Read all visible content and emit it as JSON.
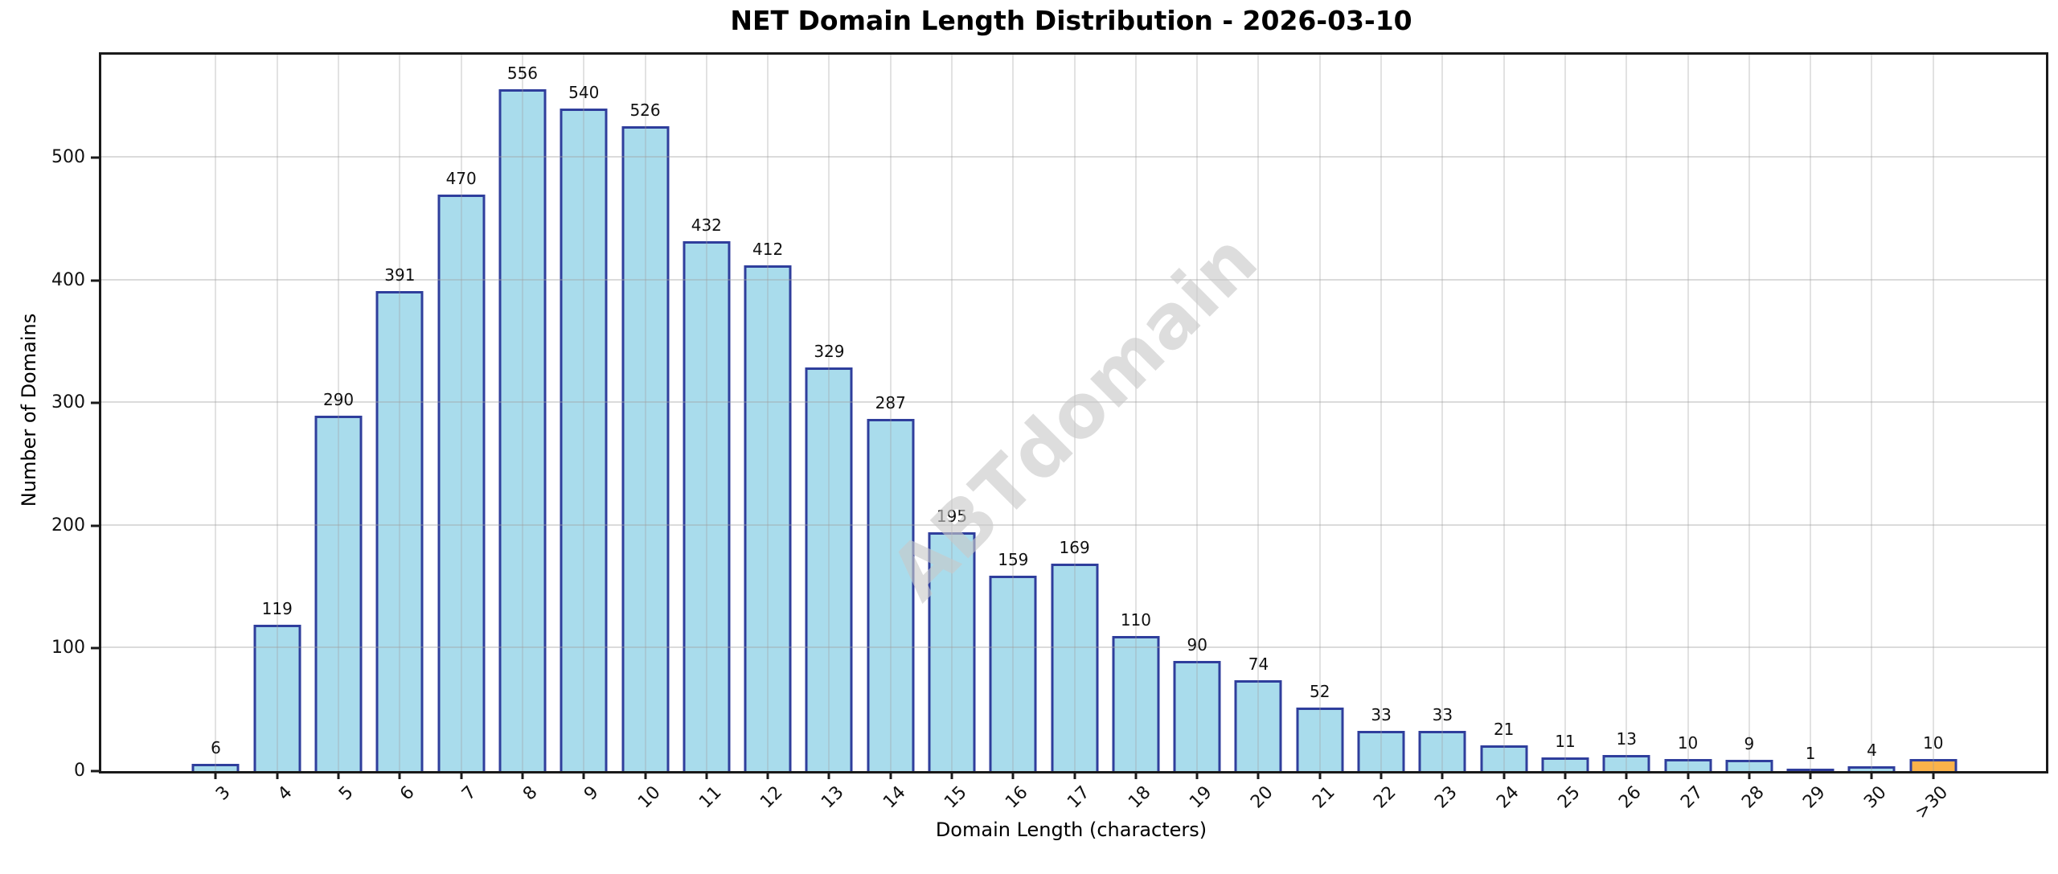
{
  "figure": {
    "title": "NET Domain Length Distribution - 2026-03-10",
    "watermark_text": "ABTdomain"
  },
  "chart_data": {
    "type": "bar",
    "title": "NET Domain Length Distribution - 2026-03-10",
    "xlabel": "Domain Length (characters)",
    "ylabel": "Number of Domains",
    "categories": [
      "3",
      "4",
      "5",
      "6",
      "7",
      "8",
      "9",
      "10",
      "11",
      "12",
      "13",
      "14",
      "15",
      "16",
      "17",
      "18",
      "19",
      "20",
      "21",
      "22",
      "23",
      "24",
      "25",
      "26",
      "27",
      "28",
      "29",
      "30",
      ">30"
    ],
    "values": [
      6,
      119,
      290,
      391,
      470,
      556,
      540,
      526,
      432,
      412,
      329,
      287,
      195,
      159,
      169,
      110,
      90,
      74,
      52,
      33,
      33,
      21,
      11,
      13,
      10,
      9,
      1,
      4,
      10
    ],
    "value_labels_shown": true,
    "yticks": [
      0,
      100,
      200,
      300,
      400,
      500
    ],
    "ylim": [
      0,
      584
    ],
    "grid": "horizontal and vertical light-gray gridlines drawn over bars",
    "legend": "none",
    "xtick_rotation_deg": 45,
    "colors": {
      "bar_fill": "#A9DCEC",
      "bar_edge": "#2F3E9C",
      "highlight_fill": "#FBB24A",
      "gridline": "#D9D9D9",
      "spine": "#1a1a1a",
      "watermark": "#c9c9c9"
    },
    "highlight_category": ">30"
  }
}
